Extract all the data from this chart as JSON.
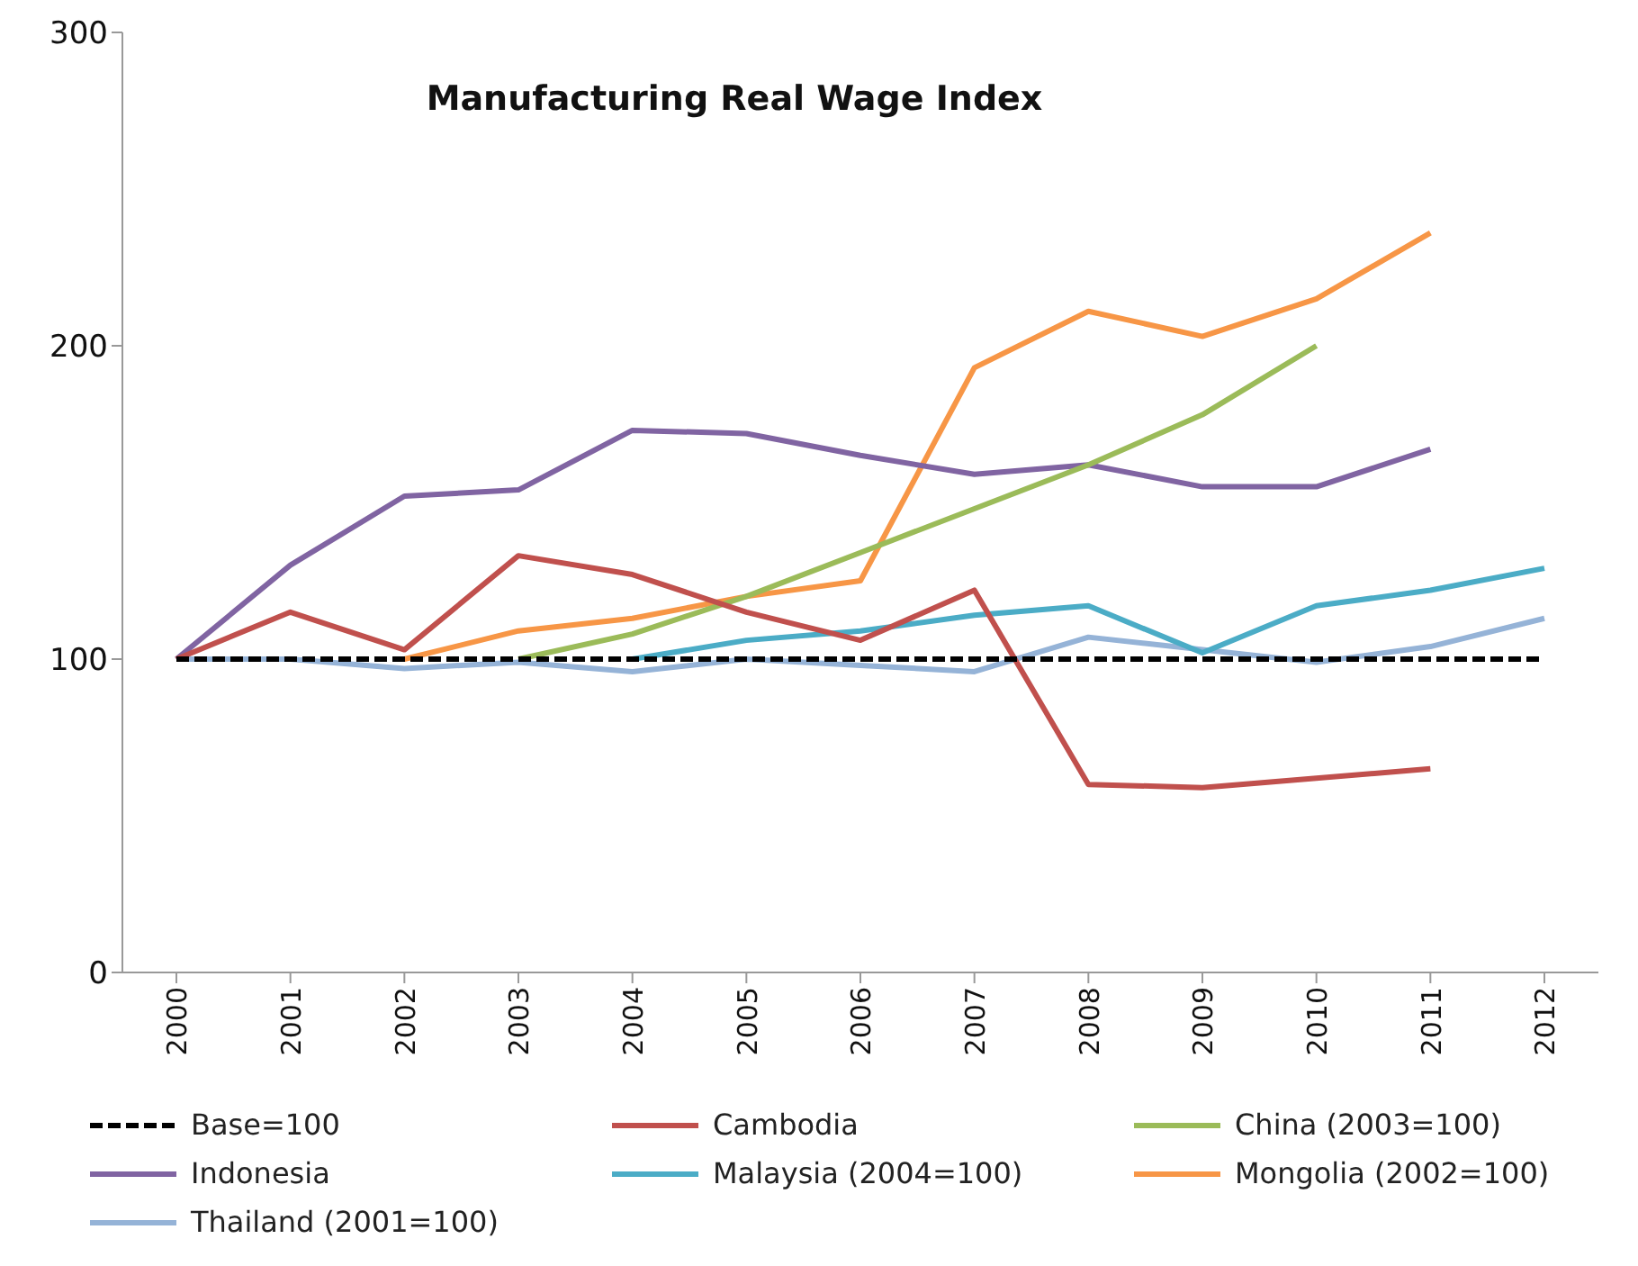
{
  "chart_data": {
    "type": "line",
    "title": "Manufacturing Real Wage Index",
    "categories": [
      "2000",
      "2001",
      "2002",
      "2003",
      "2004",
      "2005",
      "2006",
      "2007",
      "2008",
      "2009",
      "2010",
      "2011",
      "2012"
    ],
    "series": [
      {
        "name": "Base=100",
        "color": "#000000",
        "line_style": "dashed",
        "values": [
          100,
          100,
          100,
          100,
          100,
          100,
          100,
          100,
          100,
          100,
          100,
          100,
          100
        ]
      },
      {
        "name": "Cambodia",
        "color": "#c0504d",
        "values": [
          100,
          115,
          103,
          133,
          127,
          115,
          106,
          122,
          60,
          59,
          62,
          65,
          null
        ]
      },
      {
        "name": "China (2003=100)",
        "color": "#9bbb59",
        "values": [
          null,
          null,
          null,
          100,
          108,
          120,
          134,
          148,
          162,
          178,
          200,
          null,
          null
        ]
      },
      {
        "name": "Indonesia",
        "color": "#8064a2",
        "values": [
          100,
          130,
          152,
          154,
          173,
          172,
          165,
          159,
          162,
          155,
          155,
          167,
          null
        ]
      },
      {
        "name": "Malaysia (2004=100)",
        "color": "#4bacc6",
        "values": [
          null,
          null,
          null,
          null,
          100,
          106,
          109,
          114,
          117,
          102,
          117,
          122,
          129
        ]
      },
      {
        "name": "Mongolia (2002=100)",
        "color": "#f79646",
        "values": [
          null,
          null,
          100,
          109,
          113,
          120,
          125,
          193,
          211,
          203,
          215,
          236,
          null
        ]
      },
      {
        "name": "Thailand (2001=100)",
        "color": "#95b3d7",
        "values": [
          100,
          100,
          97,
          99,
          96,
          100,
          98,
          96,
          107,
          103,
          99,
          104,
          113
        ]
      }
    ],
    "ylim": [
      0,
      300
    ],
    "yticks": [
      0,
      100,
      200,
      300
    ],
    "grid": false,
    "legend": "bottom",
    "marker": "none",
    "line_style": "solid"
  }
}
